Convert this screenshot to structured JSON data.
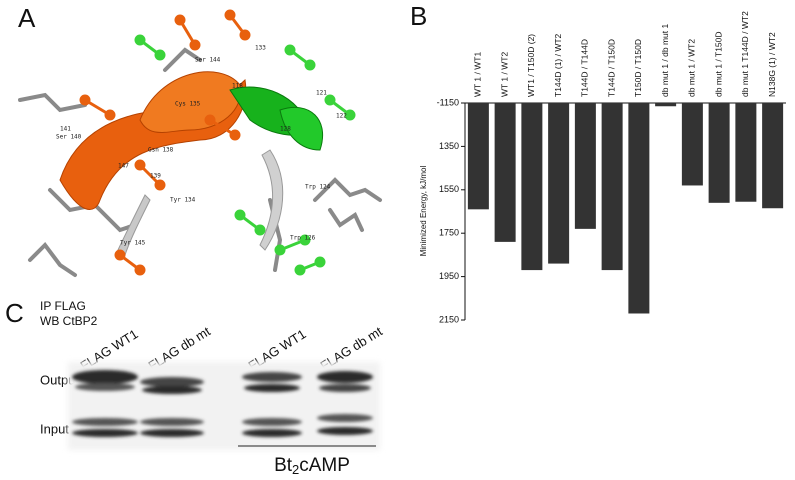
{
  "panels": {
    "a": {
      "label": "A",
      "residue_labels": [
        "133",
        "Ser 144",
        "118",
        "121",
        "122",
        "Cys 135",
        "128",
        "Ser 140",
        "141",
        "Gsn 138",
        "139",
        "147",
        "Trp 124",
        "Trp 126",
        "Tyr 145",
        "Tyr 134"
      ]
    },
    "c": {
      "label": "C",
      "ip": "IP FLAG",
      "wb": "WB CtBP2",
      "lanes": [
        "FLAG WT1",
        "FLAG db mt",
        "FLAG WT1",
        "FLAG db mt"
      ],
      "rows": [
        "Output",
        "Input"
      ],
      "treatment": {
        "main": "Bt",
        "sub": "2",
        "rest": "cAMP"
      }
    }
  },
  "chart_data": {
    "type": "bar",
    "panel_label": "B",
    "y_label": "Minimized Energy, kJ/mol",
    "categories": [
      "WT 1 / WT1",
      "WT 1 / WT2",
      "WT1 / T150D (2)",
      "T144D (1) / WT2",
      "T144D / T144D",
      "T144D / T150D",
      "T150D / T150D",
      "db mut 1 / db mut 1",
      "db mut 1 / WT2",
      "db mut 1 / T150D",
      "db mut 1 T144D / WT2",
      "N138G (1) / WT2"
    ],
    "values": [
      -1640,
      -1790,
      -1920,
      -1890,
      -1730,
      -1920,
      -2120,
      -1165,
      -1530,
      -1610,
      -1605,
      -1635
    ],
    "color": "#333333",
    "ylim": [
      -1150,
      -2150
    ],
    "yticks": [
      -1150,
      {
        "value": -1350,
        "label": "1350"
      },
      {
        "value": -1550,
        "label": "1550"
      },
      {
        "value": -1750,
        "label": "1750"
      },
      {
        "value": -1950,
        "label": "1950"
      },
      {
        "value": -2150,
        "label": "2150"
      }
    ]
  }
}
